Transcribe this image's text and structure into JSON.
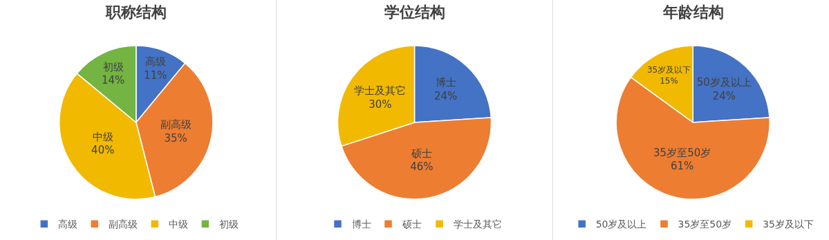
{
  "chart_data": [
    {
      "type": "pie",
      "title": "职称结构",
      "categories": [
        "高级",
        "副高级",
        "中级",
        "初级"
      ],
      "values": [
        11,
        35,
        40,
        14
      ],
      "value_labels": [
        "11%",
        "35%",
        "40%",
        "14%"
      ],
      "colors": [
        "#4472c4",
        "#ed7d31",
        "#f1b900",
        "#73b442"
      ],
      "legend": "bottom"
    },
    {
      "type": "pie",
      "title": "学位结构",
      "categories": [
        "博士",
        "硕士",
        "学士及其它"
      ],
      "values": [
        24,
        46,
        30
      ],
      "value_labels": [
        "24%",
        "46%",
        "30%"
      ],
      "colors": [
        "#4472c4",
        "#ed7d31",
        "#f1b900"
      ],
      "legend": "bottom"
    },
    {
      "type": "pie",
      "title": "年龄结构",
      "categories": [
        "50岁及以上",
        "35岁至50岁",
        "35岁及以下"
      ],
      "values": [
        24,
        61,
        15
      ],
      "value_labels": [
        "24%",
        "61%",
        "15%"
      ],
      "colors": [
        "#4472c4",
        "#ed7d31",
        "#f1b900"
      ],
      "legend": "bottom"
    }
  ]
}
